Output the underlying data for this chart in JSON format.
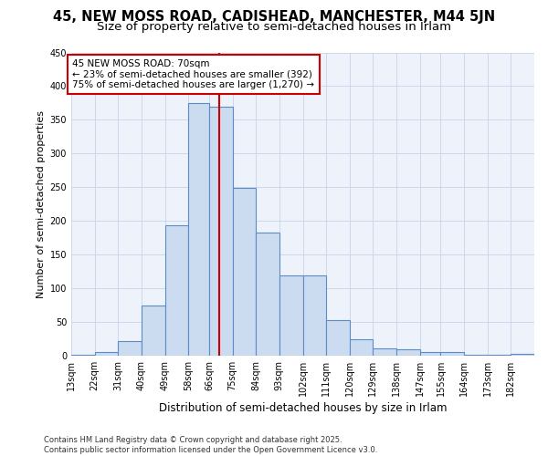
{
  "title_line1": "45, NEW MOSS ROAD, CADISHEAD, MANCHESTER, M44 5JN",
  "title_line2": "Size of property relative to semi-detached houses in Irlam",
  "xlabel": "Distribution of semi-detached houses by size in Irlam",
  "ylabel": "Number of semi-detached properties",
  "footer_line1": "Contains HM Land Registry data © Crown copyright and database right 2025.",
  "footer_line2": "Contains public sector information licensed under the Open Government Licence v3.0.",
  "annotation_title": "45 NEW MOSS ROAD: 70sqm",
  "annotation_line1": "← 23% of semi-detached houses are smaller (392)",
  "annotation_line2": "75% of semi-detached houses are larger (1,270) →",
  "property_size": 70,
  "bar_edges": [
    13,
    22,
    31,
    40,
    49,
    58,
    66,
    75,
    84,
    93,
    102,
    111,
    120,
    129,
    138,
    147,
    155,
    164,
    173,
    182,
    191
  ],
  "bar_heights": [
    2,
    5,
    21,
    75,
    193,
    375,
    370,
    249,
    183,
    119,
    119,
    53,
    25,
    11,
    9,
    6,
    5,
    2,
    2,
    3
  ],
  "bar_fill_color": "#ccdcf0",
  "bar_edge_color": "#5b8cc8",
  "grid_color": "#c8d4e8",
  "bg_color": "#eef2fa",
  "vline_color": "#cc0000",
  "annotation_box_color": "#cc0000",
  "ylim": [
    0,
    450
  ],
  "yticks": [
    0,
    50,
    100,
    150,
    200,
    250,
    300,
    350,
    400,
    450
  ],
  "title_fontsize": 10.5,
  "subtitle_fontsize": 9.5,
  "xlabel_fontsize": 8.5,
  "ylabel_fontsize": 8.0,
  "tick_fontsize": 7.0,
  "annotation_fontsize": 7.5,
  "footer_fontsize": 6.0
}
